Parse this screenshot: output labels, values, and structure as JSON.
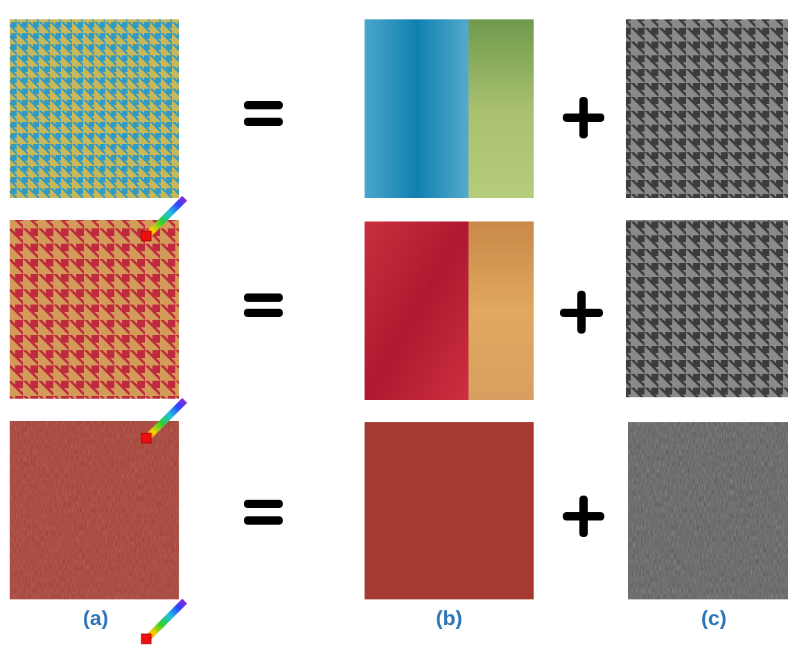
{
  "panel_labels": [
    "(a)",
    "(b)",
    "(c)"
  ]
}
